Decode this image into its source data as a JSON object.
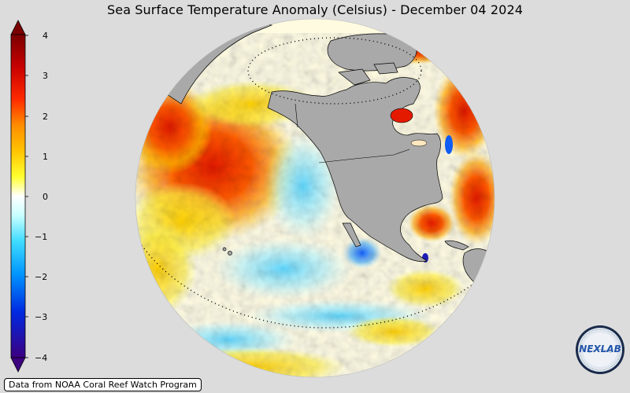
{
  "title": "Sea Surface Temperature Anomaly (Celsius) - December 04 2024",
  "colorbar": {
    "ticks": [
      "4",
      "3",
      "2",
      "1",
      "0",
      "−1",
      "−2",
      "−3",
      "−4"
    ],
    "colors": [
      "#3a0078",
      "#0000ff",
      "#00aaff",
      "#ffffff",
      "#ffff00",
      "#ff8800",
      "#ff0000",
      "#800000"
    ]
  },
  "map": {
    "projection": "orthographic",
    "land_color": "#a9a9a9",
    "background_color": "#dcdcdc"
  },
  "source_label": "Data from NOAA Coral Reef Watch Program",
  "logo": {
    "text": "NEXLAB",
    "icon": "nexlab-logo-icon"
  }
}
